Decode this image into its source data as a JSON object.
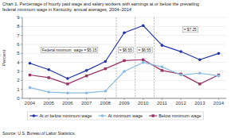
{
  "chart_data": {
    "type": "line",
    "title": "Chart 1. Percentage of hourly paid wage and salary workers with earnings at or below the prevailing",
    "subtitle": "federal minimum wage in Kentucky, annual averages, 2004–2014",
    "ylabel": "Percent",
    "source": "Source: U.S. Bureau of Labor Statistics.",
    "x": [
      2004,
      2005,
      2006,
      2007,
      2008,
      2009,
      2010,
      2011,
      2012,
      2013,
      2014
    ],
    "series": [
      {
        "name": "At or below minimum wage",
        "color": "#2233aa",
        "marker": "circle",
        "values": [
          3.9,
          3.2,
          2.2,
          3.1,
          4.1,
          7.3,
          8.1,
          5.9,
          5.2,
          4.3,
          5.0
        ]
      },
      {
        "name": "At minimum wage",
        "color": "#88bbdd",
        "marker": "circle",
        "values": [
          1.2,
          0.7,
          0.6,
          0.6,
          0.8,
          3.0,
          4.0,
          3.5,
          2.6,
          2.8,
          2.5
        ]
      },
      {
        "name": "Below minimum wage",
        "color": "#993366",
        "marker": "square",
        "values": [
          2.6,
          2.3,
          1.6,
          2.5,
          3.3,
          4.2,
          4.3,
          3.1,
          2.7,
          1.6,
          2.6
        ]
      }
    ],
    "vlines": [
      2008.58,
      2009.58,
      2010.58
    ],
    "annotations": [
      "Federal minimum  wage = $5.15",
      "= $6.55",
      "= $6.55",
      "= $7.25"
    ],
    "xlim": [
      2003.6,
      2014.4
    ],
    "xticks": [
      2004,
      2005,
      2006,
      2007,
      2008,
      2009,
      2010,
      2011,
      2012,
      2013,
      2014
    ],
    "ylim": [
      0.0,
      9.0
    ],
    "yticks": [
      0.0,
      1.0,
      2.0,
      3.0,
      4.0,
      5.0,
      6.0,
      7.0,
      8.0,
      9.0
    ],
    "grid": true,
    "legend": "bottom"
  }
}
